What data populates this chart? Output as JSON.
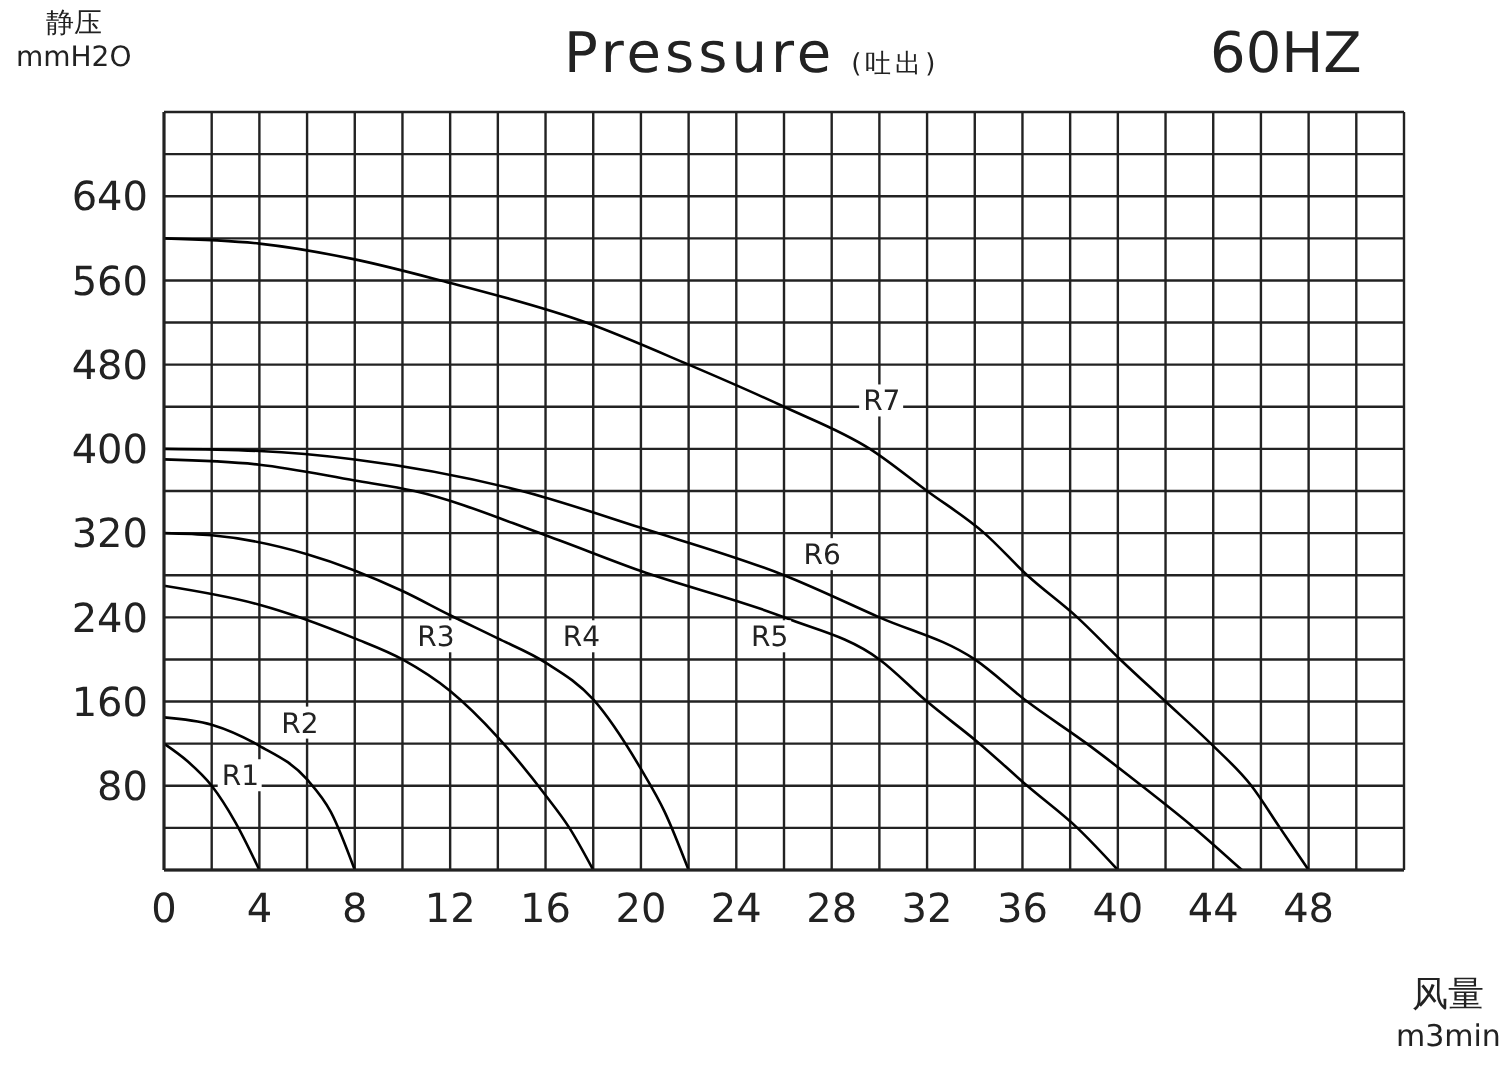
{
  "chart_data": {
    "type": "line",
    "title": "Pressure (吐出)",
    "subtitle": "60HZ",
    "xlabel": "风量\nm3min",
    "ylabel": "静压\nmmH2O",
    "xlim": [
      0,
      52
    ],
    "ylim": [
      0,
      720
    ],
    "xticks": [
      0,
      {
        "value": 2,
        "label": null
      },
      4,
      {
        "value": 6,
        "label": null
      },
      8,
      {
        "value": 10,
        "label": null
      },
      12,
      {
        "value": 14,
        "label": null
      },
      16,
      {
        "value": 18,
        "label": null
      },
      20,
      {
        "value": 22,
        "label": null
      },
      24,
      {
        "value": 26,
        "label": null
      },
      28,
      {
        "value": 30,
        "label": null
      },
      32,
      {
        "value": 34,
        "label": null
      },
      36,
      {
        "value": 38,
        "label": null
      },
      40,
      {
        "value": 42,
        "label": null
      },
      44,
      {
        "value": 46,
        "label": null
      },
      48,
      {
        "value": 50,
        "label": null
      },
      {
        "value": 52,
        "label": null
      }
    ],
    "yticks": [
      {
        "value": 0,
        "label": null
      },
      {
        "value": 40,
        "label": null
      },
      80,
      {
        "value": 120,
        "label": null
      },
      160,
      {
        "value": 200,
        "label": null
      },
      240,
      {
        "value": 280,
        "label": null
      },
      320,
      {
        "value": 360,
        "label": null
      },
      400,
      {
        "value": 440,
        "label": null
      },
      480,
      {
        "value": 520,
        "label": null
      },
      560,
      {
        "value": 600,
        "label": null
      },
      640,
      {
        "value": 680,
        "label": null
      },
      {
        "value": 720,
        "label": null
      }
    ],
    "grid": true,
    "series": [
      {
        "name": "R1",
        "color": "#000000",
        "x": [
          0,
          1,
          2,
          3,
          4
        ],
        "values": [
          120,
          103,
          80,
          45,
          0
        ]
      },
      {
        "name": "R2",
        "color": "#000000",
        "x": [
          0,
          2,
          4,
          6,
          7,
          8
        ],
        "values": [
          145,
          138,
          118,
          86,
          55,
          0
        ]
      },
      {
        "name": "R3",
        "color": "#000000",
        "x": [
          0,
          4,
          8,
          10,
          12,
          14,
          16,
          17,
          18
        ],
        "values": [
          270,
          252,
          220,
          200,
          170,
          126,
          71,
          40,
          0
        ]
      },
      {
        "name": "R4",
        "color": "#000000",
        "x": [
          0,
          2,
          6,
          10,
          12,
          14,
          16,
          18,
          20,
          21,
          22
        ],
        "values": [
          320,
          318,
          300,
          265,
          242,
          220,
          197,
          162,
          96,
          55,
          0
        ]
      },
      {
        "name": "R5",
        "color": "#000000",
        "x": [
          0,
          4,
          8,
          10.5,
          16,
          20,
          26,
          30,
          32,
          34.2,
          36.2,
          38.3,
          40
        ],
        "values": [
          390,
          385,
          370,
          360,
          318,
          284,
          240,
          200,
          160,
          120,
          80,
          40,
          0
        ]
      },
      {
        "name": "R6",
        "color": "#000000",
        "x": [
          0,
          4,
          8,
          15,
          20,
          26,
          30,
          34,
          36.2,
          38.7,
          41,
          43.2,
          45.2
        ],
        "values": [
          400,
          398,
          390,
          360,
          325,
          280,
          240,
          200,
          160,
          120,
          80,
          40,
          0
        ]
      },
      {
        "name": "R7",
        "color": "#000000",
        "x": [
          0,
          4,
          8,
          11.6,
          17.7,
          22,
          26,
          29.6,
          32,
          34.4,
          36.2,
          38.3,
          40.1,
          42,
          43.9,
          45.6,
          46.8,
          48
        ],
        "values": [
          600,
          595,
          580,
          560,
          520,
          480,
          440,
          400,
          360,
          320,
          280,
          240,
          200,
          160,
          120,
          80,
          40,
          0
        ]
      }
    ]
  }
}
